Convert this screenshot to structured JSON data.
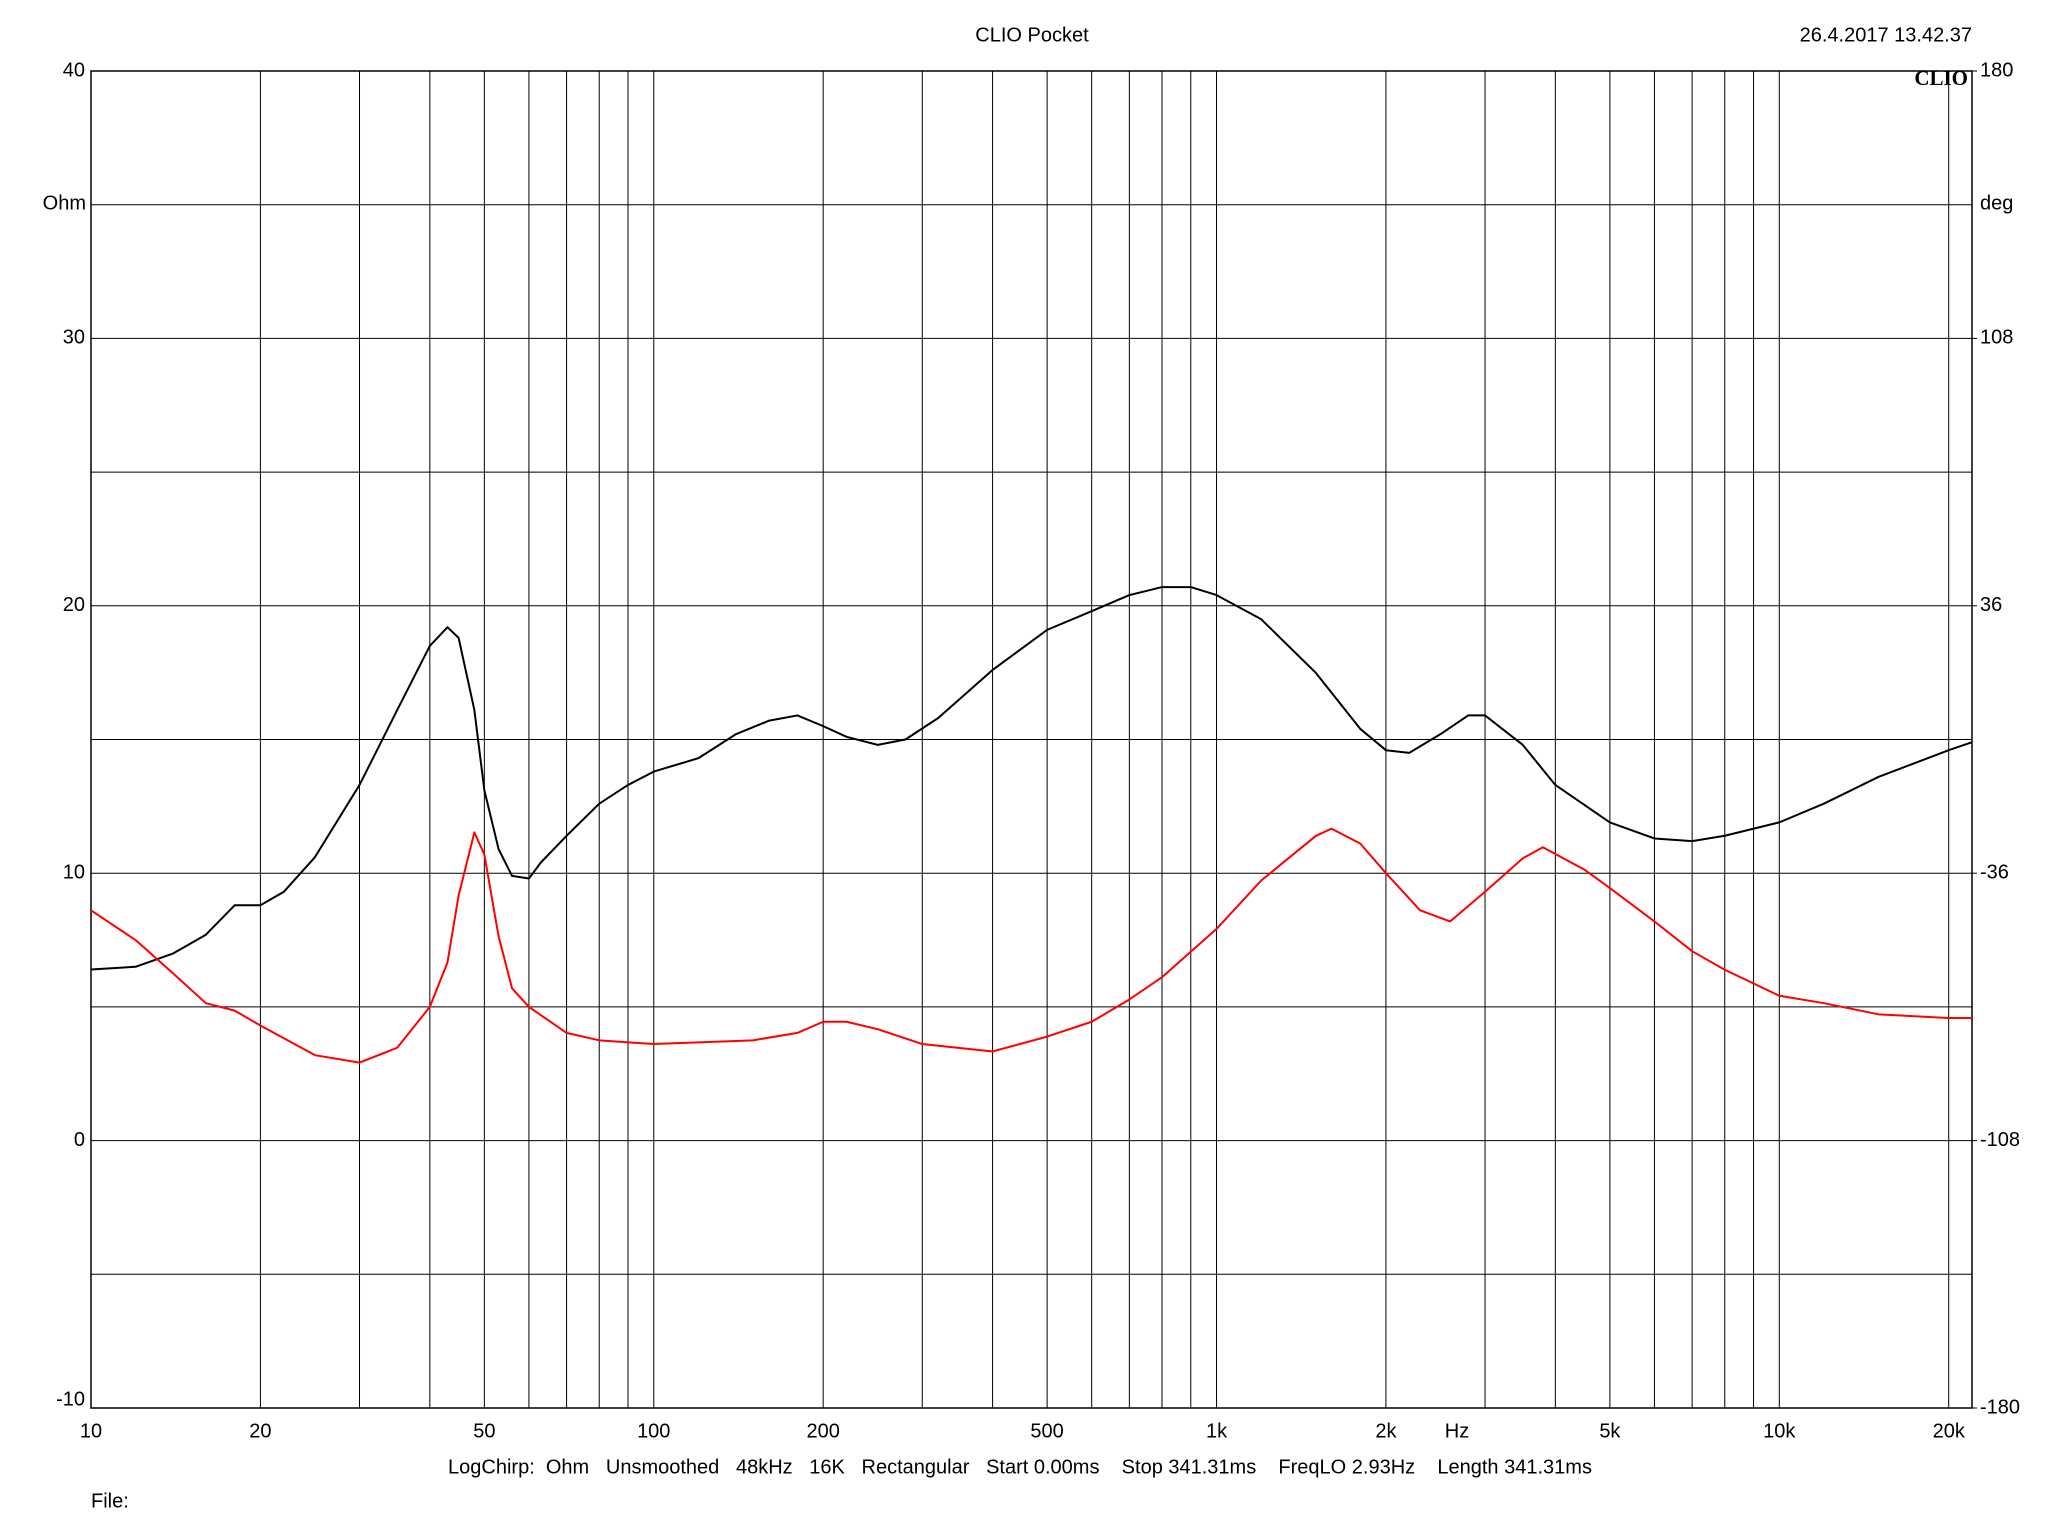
{
  "chart_data": {
    "type": "line",
    "title": "CLIO Pocket",
    "timestamp": "26.4.2017 13.42.37",
    "logo": "CLIO",
    "ylabel": "Ohm",
    "y2label": "deg",
    "xlabel": "Hz",
    "footer": "LogChirp:  Ohm   Unsmoothed   48kHz   16K   Rectangular   Start 0.00ms    Stop 341.31ms    FreqLO 2.93Hz    Length 341.31ms",
    "file_label": "File:",
    "xscale": "log",
    "xlim": [
      10,
      22000
    ],
    "xticks": [
      10,
      20,
      50,
      100,
      200,
      500,
      {
        "value": 1000,
        "label": "1k"
      },
      {
        "value": 2000,
        "label": "2k"
      },
      {
        "value": 5000,
        "label": "5k"
      },
      {
        "value": 10000,
        "label": "10k"
      },
      {
        "value": 20000,
        "label": "20k"
      }
    ],
    "xminor": [
      30,
      40,
      60,
      70,
      80,
      90,
      300,
      400,
      600,
      700,
      800,
      900,
      3000,
      4000,
      6000,
      7000,
      8000,
      9000
    ],
    "ylim": [
      -10,
      40
    ],
    "yticks": [
      -10,
      0,
      10,
      20,
      30,
      40
    ],
    "yminor": [
      -5,
      5,
      15,
      25,
      35
    ],
    "y2lim": [
      -180,
      180
    ],
    "y2ticks": [
      -180,
      -108,
      -36,
      36,
      108,
      180
    ],
    "grid": true,
    "series": [
      {
        "color": "#000000",
        "x": [
          10,
          12,
          14,
          16,
          18,
          20,
          22,
          25,
          30,
          35,
          40,
          43,
          45,
          48,
          50,
          53,
          56,
          60,
          63,
          70,
          80,
          90,
          100,
          120,
          140,
          160,
          180,
          200,
          220,
          250,
          280,
          320,
          400,
          500,
          600,
          700,
          800,
          900,
          1000,
          1200,
          1500,
          1800,
          2000,
          2200,
          2500,
          2800,
          3000,
          3500,
          4000,
          5000,
          6000,
          7000,
          8000,
          10000,
          12000,
          15000,
          20000,
          22000
        ],
        "values": [
          6.4,
          6.5,
          7.0,
          7.7,
          8.8,
          8.8,
          9.3,
          10.6,
          13.3,
          16.1,
          18.5,
          19.2,
          18.8,
          16.1,
          13.1,
          10.9,
          9.9,
          9.8,
          10.4,
          11.4,
          12.6,
          13.3,
          13.8,
          14.3,
          15.2,
          15.7,
          15.9,
          15.5,
          15.1,
          14.8,
          15.0,
          15.8,
          17.6,
          19.1,
          19.8,
          20.4,
          20.7,
          20.7,
          20.4,
          19.5,
          17.5,
          15.4,
          14.6,
          14.5,
          15.2,
          15.9,
          15.9,
          14.8,
          13.3,
          11.9,
          11.3,
          11.2,
          11.4,
          11.9,
          12.6,
          13.6,
          14.6,
          14.9
        ]
      },
      {
        "color": "#ff0000",
        "axis": "y2",
        "x": [
          10,
          12,
          14,
          16,
          18,
          20,
          25,
          30,
          35,
          40,
          43,
          45,
          48,
          50,
          53,
          56,
          60,
          70,
          80,
          100,
          150,
          180,
          200,
          220,
          250,
          300,
          400,
          500,
          600,
          700,
          800,
          1000,
          1200,
          1500,
          1600,
          1800,
          2000,
          2300,
          2600,
          3000,
          3500,
          3800,
          4500,
          5000,
          6000,
          7000,
          8000,
          10000,
          12000,
          15000,
          20000,
          22000
        ],
        "values": [
          -46,
          -54,
          -63,
          -71,
          -73,
          -77,
          -85,
          -87,
          -83,
          -72,
          -60,
          -42,
          -25,
          -31,
          -53,
          -67,
          -72,
          -79,
          -81,
          -82,
          -81,
          -79,
          -76,
          -76,
          -78,
          -82,
          -84,
          -80,
          -76,
          -70,
          -64,
          -51,
          -38,
          -26,
          -24,
          -28,
          -36,
          -46,
          -49,
          -41,
          -32,
          -29,
          -35,
          -40,
          -49,
          -57,
          -62,
          -69,
          -71,
          -74,
          -75,
          -75
        ]
      }
    ]
  }
}
